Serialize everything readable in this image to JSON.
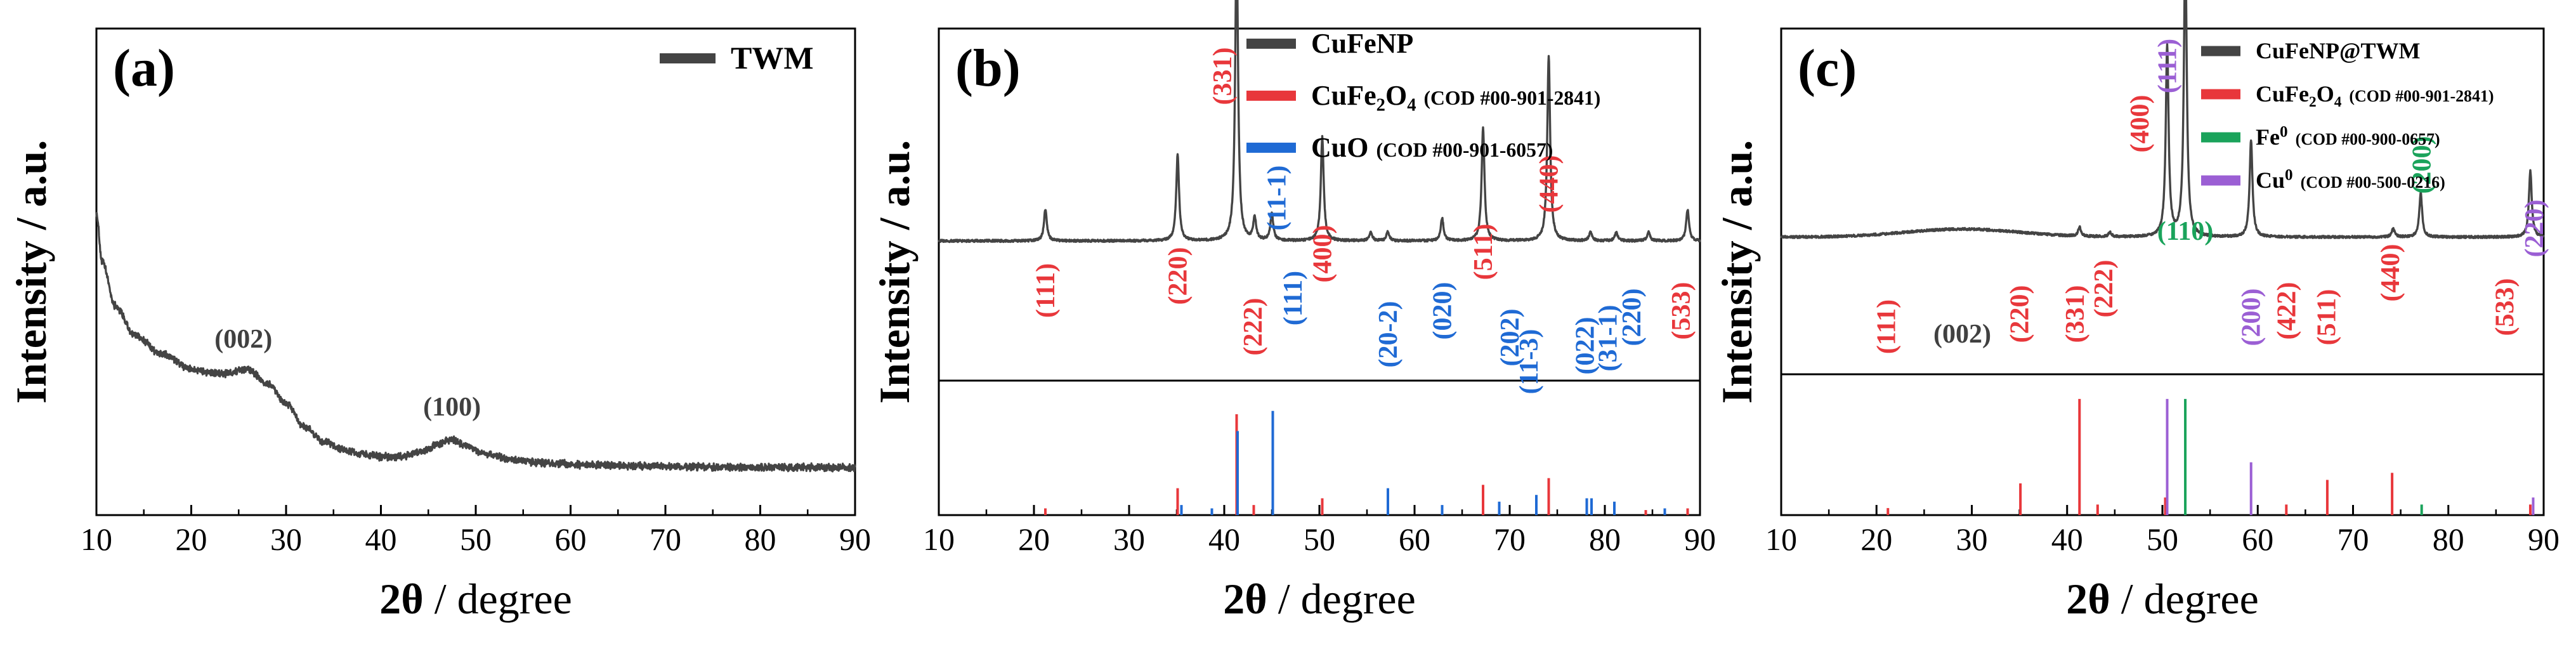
{
  "chart_data": [
    {
      "panel": "(a)",
      "type": "line",
      "xlabel_bold": "2θ",
      "xlabel_rest": " / degree",
      "ylabel": "Intensity / a.u.",
      "xlim": [
        10,
        90
      ],
      "ylim": [
        0,
        100
      ],
      "xticks": [
        "10",
        "20",
        "30",
        "40",
        "50",
        "60",
        "70",
        "80",
        "90"
      ],
      "legend": [
        {
          "label": "TWM",
          "color": "#444444"
        }
      ],
      "profile": {
        "anchors": [
          [
            10,
            62
          ],
          [
            10.6,
            52
          ],
          [
            12,
            43
          ],
          [
            14,
            37
          ],
          [
            17,
            33
          ],
          [
            20,
            30
          ],
          [
            23,
            29
          ],
          [
            26,
            30
          ],
          [
            28,
            27
          ],
          [
            30,
            23
          ],
          [
            32,
            18
          ],
          [
            34,
            15
          ],
          [
            36,
            13.5
          ],
          [
            38,
            12.5
          ],
          [
            40,
            12
          ],
          [
            42,
            12
          ],
          [
            44,
            12.8
          ],
          [
            46,
            14.5
          ],
          [
            47.5,
            15.5
          ],
          [
            49,
            14.3
          ],
          [
            51,
            12.5
          ],
          [
            54,
            11.3
          ],
          [
            58,
            10.6
          ],
          [
            62,
            10.3
          ],
          [
            70,
            10
          ],
          [
            80,
            9.8
          ],
          [
            90,
            9.8
          ]
        ],
        "noise": 0.6
      },
      "annotations": [
        {
          "text": "(002)",
          "x": 25.5,
          "color": "#404040",
          "rot": 0
        },
        {
          "text": "(100)",
          "x": 47.5,
          "color": "#404040",
          "rot": 0
        }
      ],
      "sticks": []
    },
    {
      "panel": "(b)",
      "type": "line",
      "xlabel_bold": "2θ",
      "xlabel_rest": " / degree",
      "ylabel": "Intensity / a.u.",
      "xlim": [
        10,
        90
      ],
      "ylim": [
        0,
        100
      ],
      "xticks": [
        "10",
        "20",
        "30",
        "40",
        "50",
        "60",
        "70",
        "80",
        "90"
      ],
      "legend": [
        {
          "label": "CuFeNP",
          "color": "#444444"
        },
        {
          "label": "CuFe",
          "sub": "2",
          "label2": "O",
          "sub2": "4",
          "cod": "(COD #00-901-2841)",
          "color": "#e8373b"
        },
        {
          "label": "CuO",
          "cod": "(COD #00-901-6057)",
          "color": "#1f6ad4"
        }
      ],
      "profile": {
        "baseline": 31,
        "noise": 0.25,
        "peaks": [
          [
            21.2,
            7
          ],
          [
            35.1,
            19
          ],
          [
            41.3,
            67
          ],
          [
            43.2,
            5
          ],
          [
            45.0,
            6
          ],
          [
            50.3,
            23
          ],
          [
            55.4,
            2
          ],
          [
            57.2,
            2
          ],
          [
            62.9,
            5
          ],
          [
            67.2,
            25
          ],
          [
            74.1,
            41
          ],
          [
            78.5,
            2
          ],
          [
            81.2,
            2
          ],
          [
            84.6,
            2
          ],
          [
            88.7,
            7
          ]
        ]
      },
      "annotations": [
        {
          "text": "(111)",
          "x": 21.2,
          "color": "#e8373b",
          "rot": -90
        },
        {
          "text": "(220)",
          "x": 35.1,
          "color": "#e8373b",
          "rot": -90
        },
        {
          "text": "(331)",
          "x": 39.8,
          "color": "#e8373b",
          "rot": -90
        },
        {
          "text": "(222)",
          "x": 43.0,
          "color": "#e8373b",
          "rot": -90
        },
        {
          "text": "(11-1)",
          "x": 45.5,
          "color": "#1f6ad4",
          "rot": -90
        },
        {
          "text": "(111)",
          "x": 47.2,
          "color": "#1f6ad4",
          "rot": -90
        },
        {
          "text": "(400)",
          "x": 50.3,
          "color": "#e8373b",
          "rot": -90
        },
        {
          "text": "(20-2)",
          "x": 57.2,
          "color": "#1f6ad4",
          "rot": -90
        },
        {
          "text": "(020)",
          "x": 62.9,
          "color": "#1f6ad4",
          "rot": -90
        },
        {
          "text": "(511)",
          "x": 67.2,
          "color": "#e8373b",
          "rot": -90
        },
        {
          "text": "(202)",
          "x": 70.0,
          "color": "#1f6ad4",
          "rot": -90
        },
        {
          "text": "(11-3)",
          "x": 72.0,
          "color": "#1f6ad4",
          "rot": -90
        },
        {
          "text": "(440)",
          "x": 74.1,
          "color": "#e8373b",
          "rot": -90
        },
        {
          "text": "(022)",
          "x": 77.9,
          "color": "#1f6ad4",
          "rot": -90
        },
        {
          "text": "(31-1)",
          "x": 80.3,
          "color": "#1f6ad4",
          "rot": -90
        },
        {
          "text": "(220)",
          "x": 82.8,
          "color": "#1f6ad4",
          "rot": -90
        },
        {
          "text": "(533)",
          "x": 88.0,
          "color": "#e8373b",
          "rot": -90
        }
      ],
      "sticks": [
        {
          "x": 21.2,
          "h": 2,
          "color": "#e8373b"
        },
        {
          "x": 35.1,
          "h": 8,
          "color": "#e8373b"
        },
        {
          "x": 41.3,
          "h": 30,
          "color": "#e8373b"
        },
        {
          "x": 43.1,
          "h": 3,
          "color": "#e8373b"
        },
        {
          "x": 50.3,
          "h": 5,
          "color": "#e8373b"
        },
        {
          "x": 67.2,
          "h": 9,
          "color": "#e8373b"
        },
        {
          "x": 74.1,
          "h": 11,
          "color": "#e8373b"
        },
        {
          "x": 84.3,
          "h": 1.5,
          "color": "#e8373b"
        },
        {
          "x": 88.7,
          "h": 2,
          "color": "#e8373b"
        },
        {
          "x": 35.5,
          "h": 3,
          "color": "#1f6ad4"
        },
        {
          "x": 38.7,
          "h": 2,
          "color": "#1f6ad4"
        },
        {
          "x": 41.4,
          "h": 25,
          "color": "#1f6ad4"
        },
        {
          "x": 45.1,
          "h": 31,
          "color": "#1f6ad4"
        },
        {
          "x": 57.2,
          "h": 8,
          "color": "#1f6ad4"
        },
        {
          "x": 62.9,
          "h": 3,
          "color": "#1f6ad4"
        },
        {
          "x": 68.9,
          "h": 4,
          "color": "#1f6ad4"
        },
        {
          "x": 72.8,
          "h": 6,
          "color": "#1f6ad4"
        },
        {
          "x": 78.1,
          "h": 5,
          "color": "#1f6ad4"
        },
        {
          "x": 78.6,
          "h": 5,
          "color": "#1f6ad4"
        },
        {
          "x": 81.0,
          "h": 4,
          "color": "#1f6ad4"
        },
        {
          "x": 86.3,
          "h": 2,
          "color": "#1f6ad4"
        }
      ]
    },
    {
      "panel": "(c)",
      "type": "line",
      "xlabel_bold": "2θ",
      "xlabel_rest": " / degree",
      "ylabel": "Intensity / a.u.",
      "xlim": [
        10,
        90
      ],
      "ylim": [
        0,
        100
      ],
      "xticks": [
        "10",
        "20",
        "30",
        "40",
        "50",
        "60",
        "70",
        "80",
        "90"
      ],
      "legend": [
        {
          "label": "CuFeNP@TWM",
          "color": "#444444"
        },
        {
          "label": "CuFe",
          "sub": "2",
          "label2": "O",
          "sub2": "4",
          "cod": "(COD #00-901-2841)",
          "color": "#e8373b"
        },
        {
          "label": "Fe",
          "sup": "0",
          "cod": "(COD #00-900-0657)",
          "color": "#1aa35b"
        },
        {
          "label": "Cu",
          "sup": "0",
          "cod": "(COD #00-500-0216)",
          "color": "#9b5fd4"
        }
      ],
      "profile": {
        "baseline": 31,
        "noise": 0.25,
        "hump": [
          29,
          6,
          1.8
        ],
        "peaks": [
          [
            41.3,
            2
          ],
          [
            44.5,
            1
          ],
          [
            50.5,
            43
          ],
          [
            52.4,
            66
          ],
          [
            59.3,
            22
          ],
          [
            74.2,
            2
          ],
          [
            77.1,
            10
          ],
          [
            88.6,
            15
          ]
        ]
      },
      "annotations": [
        {
          "text": "(111)",
          "x": 21.0,
          "color": "#e8373b",
          "rot": -90
        },
        {
          "text": "(002)",
          "x": 29.0,
          "color": "#404040",
          "rot": 0
        },
        {
          "text": "(220)",
          "x": 35.0,
          "color": "#e8373b",
          "rot": -90
        },
        {
          "text": "(331)",
          "x": 40.8,
          "color": "#e8373b",
          "rot": -90
        },
        {
          "text": "(222)",
          "x": 43.8,
          "color": "#e8373b",
          "rot": -90
        },
        {
          "text": "(400)",
          "x": 47.6,
          "color": "#e8373b",
          "rot": -90
        },
        {
          "text": "(111)",
          "x": 50.5,
          "color": "#9b5fd4",
          "rot": -90
        },
        {
          "text": "(110)",
          "x": 52.4,
          "color": "#1aa35b",
          "rot": 0
        },
        {
          "text": "(200)",
          "x": 59.3,
          "color": "#9b5fd4",
          "rot": -90
        },
        {
          "text": "(422)",
          "x": 63.0,
          "color": "#e8373b",
          "rot": -90
        },
        {
          "text": "(511)",
          "x": 67.2,
          "color": "#e8373b",
          "rot": -90
        },
        {
          "text": "(440)",
          "x": 73.9,
          "color": "#e8373b",
          "rot": -90
        },
        {
          "text": "(200)",
          "x": 77.2,
          "color": "#1aa35b",
          "rot": -90
        },
        {
          "text": "(533)",
          "x": 85.9,
          "color": "#e8373b",
          "rot": -90
        },
        {
          "text": "(220)",
          "x": 89.0,
          "color": "#9b5fd4",
          "rot": -90
        }
      ],
      "sticks": [
        {
          "x": 21.2,
          "h": 2,
          "color": "#e8373b"
        },
        {
          "x": 35.1,
          "h": 9,
          "color": "#e8373b"
        },
        {
          "x": 41.3,
          "h": 33,
          "color": "#e8373b"
        },
        {
          "x": 43.2,
          "h": 3,
          "color": "#e8373b"
        },
        {
          "x": 50.3,
          "h": 5,
          "color": "#e8373b"
        },
        {
          "x": 63.0,
          "h": 3,
          "color": "#e8373b"
        },
        {
          "x": 67.3,
          "h": 10,
          "color": "#e8373b"
        },
        {
          "x": 74.1,
          "h": 12,
          "color": "#e8373b"
        },
        {
          "x": 88.6,
          "h": 3,
          "color": "#e8373b"
        },
        {
          "x": 52.4,
          "h": 33,
          "color": "#1aa35b"
        },
        {
          "x": 77.2,
          "h": 3,
          "color": "#1aa35b"
        },
        {
          "x": 50.5,
          "h": 33,
          "color": "#9b5fd4"
        },
        {
          "x": 59.3,
          "h": 15,
          "color": "#9b5fd4"
        },
        {
          "x": 88.9,
          "h": 5,
          "color": "#9b5fd4"
        }
      ]
    }
  ]
}
